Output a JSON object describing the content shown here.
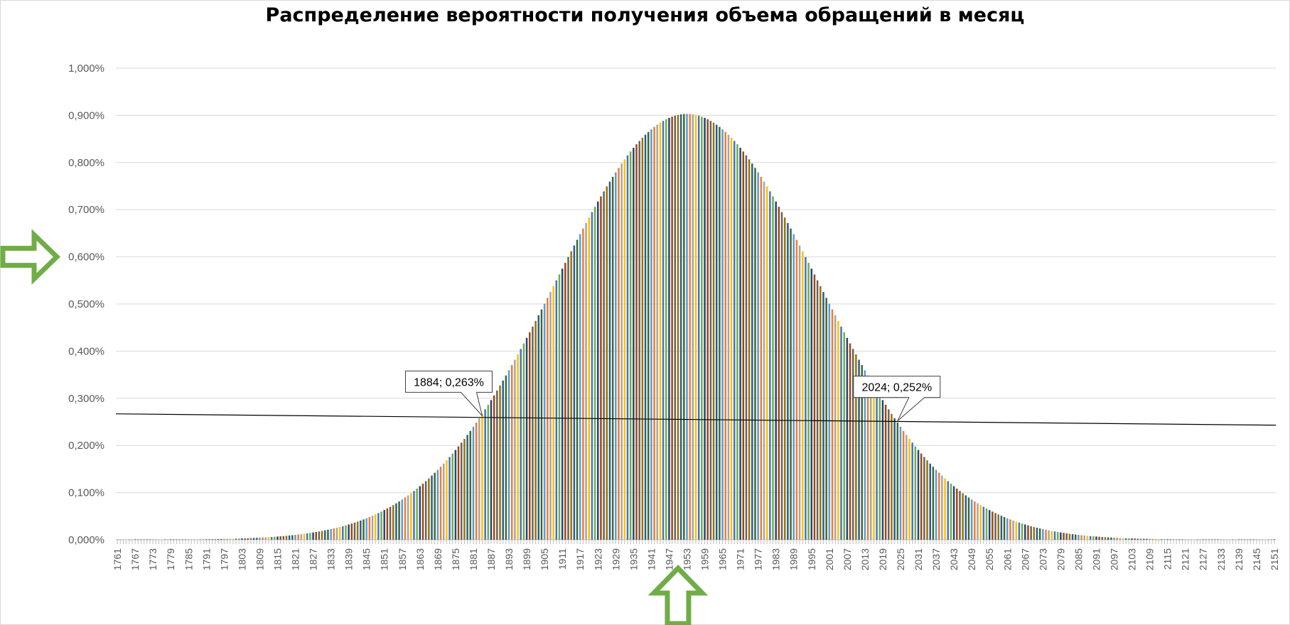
{
  "chart_data": {
    "type": "bar",
    "title": "Распределение вероятности получения объема обращений в месяц",
    "xlabel": "",
    "ylabel": "",
    "x_range": [
      1761,
      2151
    ],
    "x_step": 1,
    "x_tick_labels": [
      "1761",
      "1767",
      "1773",
      "1779",
      "1785",
      "1791",
      "1797",
      "1803",
      "1809",
      "1815",
      "1821",
      "1827",
      "1833",
      "1839",
      "1845",
      "1851",
      "1857",
      "1863",
      "1869",
      "1875",
      "1881",
      "1887",
      "1893",
      "1899",
      "1905",
      "1911",
      "1917",
      "1923",
      "1929",
      "1935",
      "1941",
      "1947",
      "1953",
      "1959",
      "1965",
      "1971",
      "1977",
      "1983",
      "1989",
      "1995",
      "2001",
      "2007",
      "2013",
      "2019",
      "2025",
      "2031",
      "2037",
      "2043",
      "2049",
      "2055",
      "2061",
      "2067",
      "2073",
      "2079",
      "2085",
      "2091",
      "2097",
      "2103",
      "2109",
      "2115",
      "2121",
      "2127",
      "2133",
      "2139",
      "2145",
      "2151"
    ],
    "distribution": {
      "shape": "normal",
      "mean": 1953,
      "std_dev": 44.2,
      "peak_percent": 0.903
    },
    "ylim": [
      0,
      1.0
    ],
    "y_tick_labels": [
      "0,000%",
      "0,100%",
      "0,200%",
      "0,300%",
      "0,400%",
      "0,500%",
      "0,600%",
      "0,700%",
      "0,800%",
      "0,900%",
      "1,000%"
    ],
    "grid": true,
    "bar_colors": [
      "#5b9bd5",
      "#ed7d31",
      "#a5a5a5",
      "#ffc000",
      "#4472c4",
      "#70ad47",
      "#264478",
      "#9e480e",
      "#636363",
      "#997300",
      "#255e91",
      "#43682b"
    ],
    "trendline": {
      "start": [
        1761,
        0.267
      ],
      "end": [
        2151,
        0.243
      ],
      "color": "#000000"
    },
    "annotations": [
      {
        "x": 1884,
        "y": 0.263,
        "label": "1884; 0,263%"
      },
      {
        "x": 2024,
        "y": 0.252,
        "label": "2024; 0,252%"
      }
    ],
    "markers": {
      "color": "#70ad47",
      "y_axis_arrow_at": 0.6,
      "x_axis_arrow_at": 1950
    }
  }
}
